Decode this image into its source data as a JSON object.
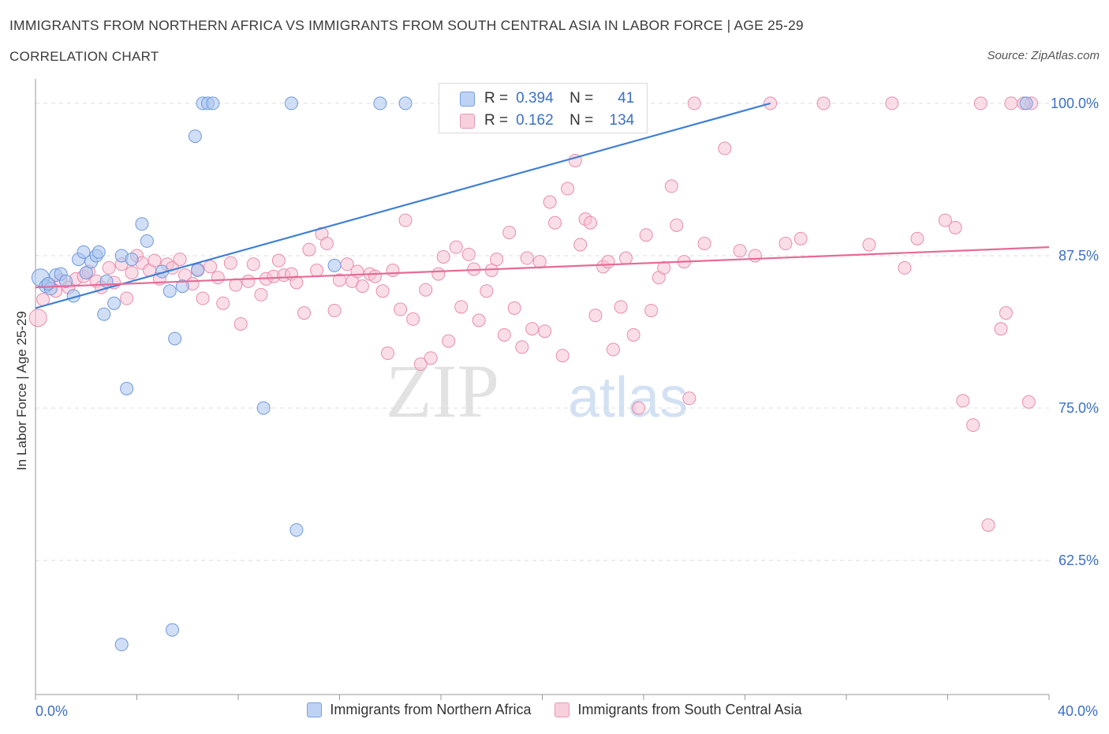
{
  "title": "IMMIGRANTS FROM NORTHERN AFRICA VS IMMIGRANTS FROM SOUTH CENTRAL ASIA IN LABOR FORCE | AGE 25-29",
  "subtitle": "CORRELATION CHART",
  "source": "Source: ZipAtlas.com",
  "watermark": {
    "zip": "ZIP",
    "atlas": "atlas"
  },
  "stats": [
    {
      "r_label": "R =",
      "r": "0.394",
      "n_label": "N =",
      "n": "41"
    },
    {
      "r_label": "R =",
      "r": "0.162",
      "n_label": "N =",
      "n": "134"
    }
  ],
  "chart_data": {
    "type": "scatter",
    "ylabel": "In Labor Force | Age 25-29",
    "xlim": [
      0,
      40
    ],
    "ylim": [
      51.5,
      102
    ],
    "x_tick_labels": [
      "0.0%",
      "40.0%"
    ],
    "y_ticks": [
      {
        "value": 62.5,
        "label": "62.5%"
      },
      {
        "value": 75.0,
        "label": "75.0%"
      },
      {
        "value": 87.5,
        "label": "87.5%"
      },
      {
        "value": 100.0,
        "label": "100.0%"
      }
    ],
    "grid": true,
    "legend_position": "bottom",
    "colors": {
      "blue_fill": "#a9c4ef",
      "blue_stroke": "#6f98dd",
      "blue_line": "#3f7fd6",
      "pink_fill": "#f6c3d3",
      "pink_stroke": "#e88dac",
      "pink_line": "#e76a96",
      "tick_text": "#3a70c7"
    },
    "series": [
      {
        "name": "Immigrants from Northern Africa",
        "color": "blue",
        "trend": [
          [
            0,
            83.2
          ],
          [
            29,
            100.0
          ]
        ],
        "points": [
          [
            0.2,
            85.7
          ],
          [
            0.4,
            85.0
          ],
          [
            0.6,
            84.8
          ],
          [
            0.8,
            85.9
          ],
          [
            1.0,
            86.0
          ],
          [
            1.2,
            85.4
          ],
          [
            1.5,
            84.2
          ],
          [
            1.7,
            87.2
          ],
          [
            1.9,
            87.8
          ],
          [
            2.0,
            86.1
          ],
          [
            2.2,
            87.0
          ],
          [
            2.4,
            87.5
          ],
          [
            2.5,
            87.8
          ],
          [
            2.7,
            82.7
          ],
          [
            2.8,
            85.4
          ],
          [
            3.1,
            83.6
          ],
          [
            3.4,
            87.5
          ],
          [
            3.6,
            76.6
          ],
          [
            3.8,
            87.2
          ],
          [
            4.2,
            90.1
          ],
          [
            4.4,
            88.7
          ],
          [
            5.0,
            86.2
          ],
          [
            5.3,
            84.6
          ],
          [
            5.5,
            80.7
          ],
          [
            5.8,
            85.0
          ],
          [
            6.3,
            97.3
          ],
          [
            6.4,
            86.3
          ],
          [
            6.6,
            100.0
          ],
          [
            6.8,
            100.0
          ],
          [
            7.0,
            100.0
          ],
          [
            9.0,
            75.0
          ],
          [
            10.1,
            100.0
          ],
          [
            10.3,
            65.0
          ],
          [
            11.8,
            86.7
          ],
          [
            13.6,
            100.0
          ],
          [
            14.6,
            100.0
          ],
          [
            19.3,
            100.0
          ],
          [
            39.1,
            100.0
          ],
          [
            3.4,
            55.6
          ],
          [
            5.4,
            56.8
          ],
          [
            0.5,
            85.2
          ]
        ]
      },
      {
        "name": "Immigrants from South Central Asia",
        "color": "pink",
        "trend": [
          [
            0,
            84.9
          ],
          [
            40,
            88.2
          ]
        ],
        "points": [
          [
            0.1,
            82.4
          ],
          [
            0.3,
            83.9
          ],
          [
            0.5,
            85.2
          ],
          [
            0.8,
            84.6
          ],
          [
            1.0,
            85.5
          ],
          [
            1.3,
            84.9
          ],
          [
            1.6,
            85.6
          ],
          [
            1.9,
            85.8
          ],
          [
            2.1,
            86.2
          ],
          [
            2.4,
            85.4
          ],
          [
            2.6,
            84.9
          ],
          [
            2.9,
            86.5
          ],
          [
            3.1,
            85.3
          ],
          [
            3.4,
            86.8
          ],
          [
            3.6,
            84.0
          ],
          [
            3.8,
            86.1
          ],
          [
            4.0,
            87.5
          ],
          [
            4.2,
            86.9
          ],
          [
            4.5,
            86.3
          ],
          [
            4.7,
            87.1
          ],
          [
            4.9,
            85.6
          ],
          [
            5.2,
            86.8
          ],
          [
            5.4,
            86.5
          ],
          [
            5.7,
            87.2
          ],
          [
            5.9,
            85.9
          ],
          [
            6.2,
            85.2
          ],
          [
            6.4,
            86.4
          ],
          [
            6.6,
            84.0
          ],
          [
            6.9,
            86.6
          ],
          [
            7.2,
            85.7
          ],
          [
            7.4,
            83.6
          ],
          [
            7.7,
            86.9
          ],
          [
            7.9,
            85.1
          ],
          [
            8.1,
            81.9
          ],
          [
            8.4,
            85.4
          ],
          [
            8.6,
            86.8
          ],
          [
            8.9,
            84.3
          ],
          [
            9.1,
            85.6
          ],
          [
            9.4,
            85.8
          ],
          [
            9.6,
            87.1
          ],
          [
            9.8,
            85.9
          ],
          [
            10.1,
            86.0
          ],
          [
            10.3,
            85.3
          ],
          [
            10.6,
            82.8
          ],
          [
            10.8,
            88.0
          ],
          [
            11.1,
            86.3
          ],
          [
            11.3,
            89.3
          ],
          [
            11.5,
            88.5
          ],
          [
            11.8,
            83.0
          ],
          [
            12.0,
            85.5
          ],
          [
            12.3,
            86.8
          ],
          [
            12.5,
            85.4
          ],
          [
            12.7,
            86.2
          ],
          [
            12.9,
            85.0
          ],
          [
            13.2,
            86.0
          ],
          [
            13.4,
            85.8
          ],
          [
            13.7,
            84.6
          ],
          [
            13.9,
            79.5
          ],
          [
            14.1,
            86.3
          ],
          [
            14.4,
            83.1
          ],
          [
            14.6,
            90.4
          ],
          [
            14.9,
            82.3
          ],
          [
            15.2,
            78.6
          ],
          [
            15.4,
            84.7
          ],
          [
            15.6,
            79.1
          ],
          [
            15.9,
            86.0
          ],
          [
            16.1,
            87.4
          ],
          [
            16.3,
            80.5
          ],
          [
            16.6,
            88.2
          ],
          [
            16.8,
            83.3
          ],
          [
            17.1,
            87.6
          ],
          [
            17.3,
            86.4
          ],
          [
            17.5,
            82.2
          ],
          [
            17.8,
            84.6
          ],
          [
            18.0,
            86.3
          ],
          [
            18.2,
            87.2
          ],
          [
            18.5,
            81.0
          ],
          [
            18.7,
            89.4
          ],
          [
            18.9,
            83.2
          ],
          [
            19.2,
            80.0
          ],
          [
            19.4,
            87.3
          ],
          [
            19.6,
            81.5
          ],
          [
            19.9,
            87.0
          ],
          [
            20.1,
            81.3
          ],
          [
            20.3,
            91.9
          ],
          [
            20.5,
            90.2
          ],
          [
            20.8,
            79.3
          ],
          [
            21.0,
            93.0
          ],
          [
            21.3,
            95.3
          ],
          [
            21.5,
            88.4
          ],
          [
            21.7,
            90.5
          ],
          [
            21.9,
            90.2
          ],
          [
            22.1,
            82.6
          ],
          [
            22.4,
            86.6
          ],
          [
            22.6,
            87.0
          ],
          [
            22.8,
            79.8
          ],
          [
            23.1,
            83.3
          ],
          [
            23.3,
            87.3
          ],
          [
            23.6,
            81.0
          ],
          [
            23.8,
            75.0
          ],
          [
            24.1,
            89.2
          ],
          [
            24.3,
            83.0
          ],
          [
            24.6,
            85.7
          ],
          [
            24.8,
            86.5
          ],
          [
            25.1,
            93.2
          ],
          [
            25.3,
            90.0
          ],
          [
            25.6,
            87.0
          ],
          [
            25.8,
            75.8
          ],
          [
            26.4,
            88.5
          ],
          [
            27.2,
            96.3
          ],
          [
            27.8,
            87.9
          ],
          [
            28.4,
            87.5
          ],
          [
            29.0,
            100.0
          ],
          [
            29.6,
            88.5
          ],
          [
            30.2,
            88.9
          ],
          [
            31.1,
            100.0
          ],
          [
            32.9,
            88.4
          ],
          [
            33.8,
            100.0
          ],
          [
            34.3,
            86.5
          ],
          [
            34.8,
            88.9
          ],
          [
            35.9,
            90.4
          ],
          [
            36.3,
            89.8
          ],
          [
            36.6,
            75.6
          ],
          [
            37.0,
            73.6
          ],
          [
            37.3,
            100.0
          ],
          [
            37.6,
            65.4
          ],
          [
            38.1,
            81.5
          ],
          [
            38.3,
            82.8
          ],
          [
            38.5,
            100.0
          ],
          [
            39.2,
            75.5
          ],
          [
            39.3,
            100.0
          ],
          [
            39.0,
            100.0
          ],
          [
            26.0,
            100.0
          ],
          [
            21.6,
            100.0
          ]
        ]
      }
    ]
  }
}
